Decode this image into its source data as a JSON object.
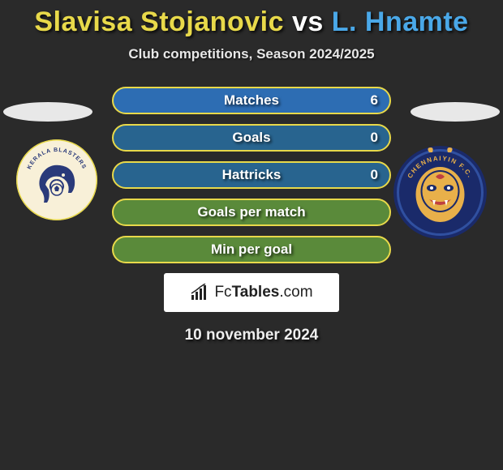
{
  "title": {
    "player1": "Slavisa Stojanovic",
    "vs": "vs",
    "player2": "L. Hnamte",
    "player1_color": "#e8d94a",
    "vs_color": "#ffffff",
    "player2_color": "#4aa8e8"
  },
  "subtitle": "Club competitions, Season 2024/2025",
  "stats": {
    "rows": [
      {
        "label": "Matches",
        "right": "6",
        "bg": "#2d6db3",
        "border": "#e8d94a"
      },
      {
        "label": "Goals",
        "right": "0",
        "bg": "#28648f",
        "border": "#e8d94a"
      },
      {
        "label": "Hattricks",
        "right": "0",
        "bg": "#28648f",
        "border": "#e8d94a"
      },
      {
        "label": "Goals per match",
        "right": "",
        "bg": "#5a8a3a",
        "border": "#e8d94a"
      },
      {
        "label": "Min per goal",
        "right": "",
        "bg": "#5a8a3a",
        "border": "#e8d94a"
      }
    ]
  },
  "team_left": {
    "logo_bg": "#f8f0d8",
    "ring_color": "#e8d94a",
    "accent": "#2a3a7a",
    "text": "KERALA BLASTERS"
  },
  "team_right": {
    "logo_bg": "#1a2a6a",
    "ring_color": "#3050a0",
    "accent": "#e8b04a",
    "text": "CHENNAIYIN F.C."
  },
  "brand": {
    "icon_color": "#222222",
    "text_prefix": "Fc",
    "text_bold": "Tables",
    "text_suffix": ".com"
  },
  "date": "10 november 2024"
}
